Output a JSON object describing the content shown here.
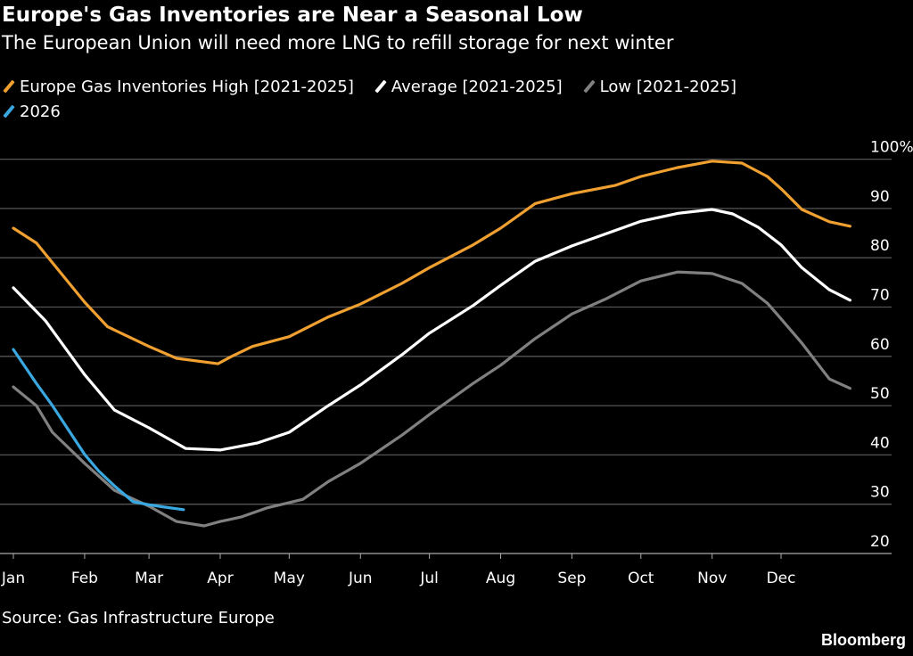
{
  "chart_data": {
    "type": "line",
    "title": "Europe's Gas Inventories are Near a Seasonal Low",
    "subtitle": "The European Union will need more LNG to refill storage for next winter",
    "source": "Source: Gas Infrastructure Europe",
    "brand": "Bloomberg",
    "x_ticks": [
      "Jan",
      "Feb",
      "Mar",
      "Apr",
      "May",
      "Jun",
      "Jul",
      "Aug",
      "Sep",
      "Oct",
      "Nov",
      "Dec"
    ],
    "y_ticks": [
      "100%",
      "90",
      "80",
      "70",
      "60",
      "50",
      "40",
      "30",
      "20"
    ],
    "ylim": [
      20,
      100
    ],
    "grid": true,
    "legend_placement": "top-left",
    "series": [
      {
        "name": "Europe Gas Inventories High [2021-2025]",
        "color": "#f0a030",
        "points": [
          [
            "01-01",
            86
          ],
          [
            "01-11",
            83
          ],
          [
            "01-18",
            79
          ],
          [
            "02-01",
            71
          ],
          [
            "02-11",
            66
          ],
          [
            "03-01",
            62
          ],
          [
            "03-13",
            59.6
          ],
          [
            "03-31",
            58.5
          ],
          [
            "04-06",
            60
          ],
          [
            "04-15",
            62
          ],
          [
            "05-01",
            64
          ],
          [
            "05-18",
            68
          ],
          [
            "06-01",
            70.6
          ],
          [
            "06-19",
            74.8
          ],
          [
            "07-01",
            78
          ],
          [
            "07-20",
            82.6
          ],
          [
            "08-01",
            86
          ],
          [
            "08-16",
            91
          ],
          [
            "09-01",
            93
          ],
          [
            "09-20",
            94.7
          ],
          [
            "10-01",
            96.5
          ],
          [
            "10-17",
            98.3
          ],
          [
            "11-01",
            99.6
          ],
          [
            "11-14",
            99.2
          ],
          [
            "11-25",
            96.5
          ],
          [
            "12-01",
            94
          ],
          [
            "12-10",
            89.8
          ],
          [
            "12-22",
            87.3
          ],
          [
            "12-31",
            86.4
          ]
        ]
      },
      {
        "name": "Average [2021-2025]",
        "color": "#ffffff",
        "points": [
          [
            "01-01",
            73.9
          ],
          [
            "01-15",
            67.2
          ],
          [
            "02-01",
            56.3
          ],
          [
            "02-14",
            49.1
          ],
          [
            "03-01",
            45.5
          ],
          [
            "03-17",
            41.3
          ],
          [
            "04-01",
            41
          ],
          [
            "04-17",
            42.4
          ],
          [
            "05-01",
            44.6
          ],
          [
            "05-18",
            50
          ],
          [
            "06-01",
            54.2
          ],
          [
            "06-19",
            60.3
          ],
          [
            "07-01",
            64.7
          ],
          [
            "07-20",
            70.3
          ],
          [
            "08-01",
            74.4
          ],
          [
            "08-16",
            79.3
          ],
          [
            "09-01",
            82.4
          ],
          [
            "09-16",
            84.9
          ],
          [
            "10-01",
            87.4
          ],
          [
            "10-17",
            89
          ],
          [
            "11-01",
            89.8
          ],
          [
            "11-10",
            88.9
          ],
          [
            "11-21",
            86.2
          ],
          [
            "12-01",
            82.6
          ],
          [
            "12-10",
            78
          ],
          [
            "12-22",
            73.5
          ],
          [
            "12-31",
            71.4
          ]
        ]
      },
      {
        "name": "Low [2021-2025]",
        "color": "#808080",
        "points": [
          [
            "01-01",
            53.8
          ],
          [
            "01-11",
            50
          ],
          [
            "01-18",
            44.6
          ],
          [
            "02-01",
            38.3
          ],
          [
            "02-14",
            32.8
          ],
          [
            "03-01",
            29.6
          ],
          [
            "03-13",
            26.5
          ],
          [
            "03-25",
            25.6
          ],
          [
            "04-01",
            26.5
          ],
          [
            "04-10",
            27.4
          ],
          [
            "04-21",
            29.2
          ],
          [
            "05-07",
            31
          ],
          [
            "05-18",
            34.6
          ],
          [
            "06-01",
            38.3
          ],
          [
            "06-19",
            44
          ],
          [
            "07-01",
            48.2
          ],
          [
            "07-20",
            54.5
          ],
          [
            "08-01",
            58.2
          ],
          [
            "08-16",
            63.6
          ],
          [
            "09-01",
            68.6
          ],
          [
            "09-16",
            71.7
          ],
          [
            "10-01",
            75.3
          ],
          [
            "10-17",
            77.1
          ],
          [
            "11-01",
            76.8
          ],
          [
            "11-14",
            74.8
          ],
          [
            "11-25",
            70.8
          ],
          [
            "12-01",
            67.6
          ],
          [
            "12-10",
            62.7
          ],
          [
            "12-22",
            55.4
          ],
          [
            "12-31",
            53.5
          ]
        ]
      },
      {
        "name": "2026",
        "color": "#3aa8e0",
        "points": [
          [
            "01-01",
            61.4
          ],
          [
            "01-11",
            54.5
          ],
          [
            "01-18",
            50
          ],
          [
            "02-01",
            40.1
          ],
          [
            "02-07",
            36.8
          ],
          [
            "02-14",
            33.7
          ],
          [
            "02-22",
            30.5
          ],
          [
            "03-01",
            29.9
          ],
          [
            "03-08",
            29.4
          ],
          [
            "03-16",
            28.9
          ]
        ]
      }
    ]
  }
}
